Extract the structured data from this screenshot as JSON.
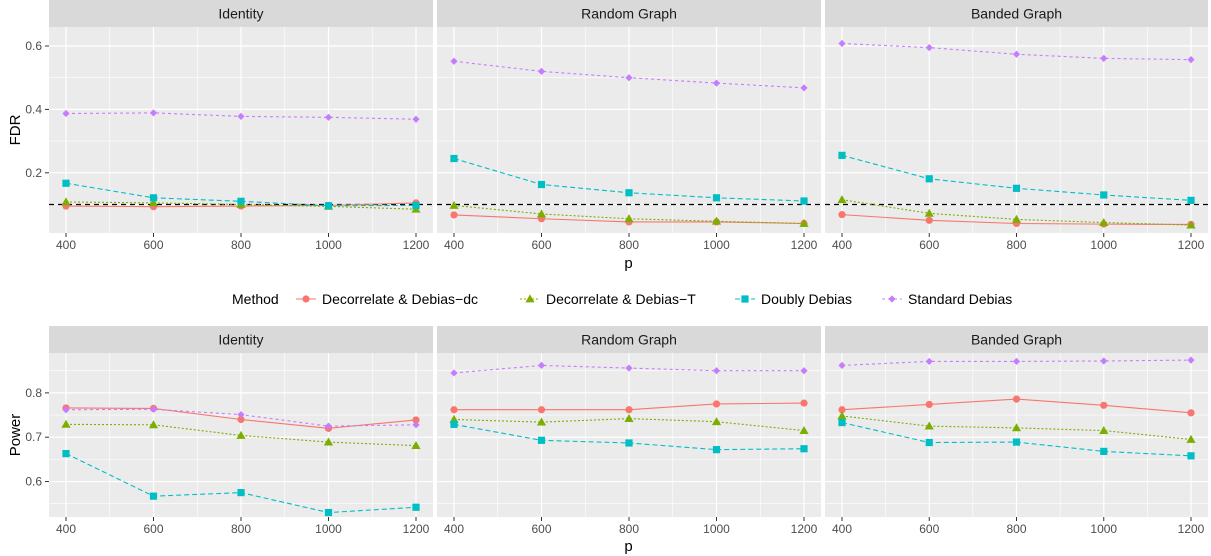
{
  "legend": {
    "title": "Method",
    "entries": [
      {
        "name": "Decorrelate & Debias−dc",
        "color": "#F8766D",
        "shape": "circle",
        "dash": ""
      },
      {
        "name": "Decorrelate & Debias−T",
        "color": "#7CAE00",
        "shape": "triangle",
        "dash": "2,2"
      },
      {
        "name": "Doubly Debias",
        "color": "#00BFC4",
        "shape": "square",
        "dash": "5,3"
      },
      {
        "name": "Standard Debias",
        "color": "#C77CFF",
        "shape": "diamond",
        "dash": "3,3"
      }
    ]
  },
  "chart_data": [
    {
      "type": "line",
      "ylabel": "FDR",
      "xlabel": "p",
      "x_ticks": [
        "400",
        "600",
        "800",
        "1000",
        "1200"
      ],
      "y_ticks": [
        "0.2",
        "0.4",
        "0.6"
      ],
      "reference_line": 0.1,
      "panels": [
        {
          "title": "Identity",
          "x": [
            400,
            600,
            800,
            1000,
            1200
          ],
          "series": [
            {
              "name": "Decorrelate & Debias−dc",
              "values": [
                0.095,
                0.093,
                0.095,
                0.097,
                0.105
              ]
            },
            {
              "name": "Decorrelate & Debias−T",
              "values": [
                0.108,
                0.105,
                0.1,
                0.094,
                0.085
              ]
            },
            {
              "name": "Doubly Debias",
              "values": [
                0.167,
                0.121,
                0.11,
                0.096,
                0.097
              ]
            },
            {
              "name": "Standard Debias",
              "values": [
                0.387,
                0.389,
                0.378,
                0.375,
                0.369
              ]
            }
          ]
        },
        {
          "title": "Random Graph",
          "x": [
            400,
            600,
            800,
            1000,
            1200
          ],
          "series": [
            {
              "name": "Decorrelate & Debias−dc",
              "values": [
                0.067,
                0.055,
                0.045,
                0.045,
                0.04
              ]
            },
            {
              "name": "Decorrelate & Debias−T",
              "values": [
                0.097,
                0.07,
                0.055,
                0.047,
                0.04
              ]
            },
            {
              "name": "Doubly Debias",
              "values": [
                0.245,
                0.163,
                0.137,
                0.121,
                0.111
              ]
            },
            {
              "name": "Standard Debias",
              "values": [
                0.552,
                0.52,
                0.5,
                0.483,
                0.468
              ]
            }
          ]
        },
        {
          "title": "Banded Graph",
          "x": [
            400,
            600,
            800,
            1000,
            1200
          ],
          "series": [
            {
              "name": "Decorrelate & Debias−dc",
              "values": [
                0.068,
                0.05,
                0.04,
                0.038,
                0.037
              ]
            },
            {
              "name": "Decorrelate & Debias−T",
              "values": [
                0.115,
                0.072,
                0.053,
                0.043,
                0.035
              ]
            },
            {
              "name": "Doubly Debias",
              "values": [
                0.255,
                0.181,
                0.151,
                0.13,
                0.113
              ]
            },
            {
              "name": "Standard Debias",
              "values": [
                0.608,
                0.595,
                0.574,
                0.561,
                0.557
              ]
            }
          ]
        }
      ],
      "ylim": [
        0.01,
        0.66
      ]
    },
    {
      "type": "line",
      "ylabel": "Power",
      "xlabel": "p",
      "x_ticks": [
        "400",
        "600",
        "800",
        "1000",
        "1200"
      ],
      "y_ticks": [
        "0.6",
        "0.7",
        "0.8"
      ],
      "panels": [
        {
          "title": "Identity",
          "x": [
            400,
            600,
            800,
            1000,
            1200
          ],
          "series": [
            {
              "name": "Decorrelate & Debias−dc",
              "values": [
                0.766,
                0.765,
                0.74,
                0.72,
                0.739
              ]
            },
            {
              "name": "Decorrelate & Debias−T",
              "values": [
                0.729,
                0.728,
                0.704,
                0.689,
                0.681
              ]
            },
            {
              "name": "Doubly Debias",
              "values": [
                0.663,
                0.567,
                0.575,
                0.53,
                0.542
              ]
            },
            {
              "name": "Standard Debias",
              "values": [
                0.762,
                0.763,
                0.751,
                0.725,
                0.728
              ]
            }
          ]
        },
        {
          "title": "Random Graph",
          "x": [
            400,
            600,
            800,
            1000,
            1200
          ],
          "series": [
            {
              "name": "Decorrelate & Debias−dc",
              "values": [
                0.762,
                0.762,
                0.762,
                0.775,
                0.777
              ]
            },
            {
              "name": "Decorrelate & Debias−T",
              "values": [
                0.74,
                0.734,
                0.742,
                0.735,
                0.715
              ]
            },
            {
              "name": "Doubly Debias",
              "values": [
                0.729,
                0.693,
                0.687,
                0.672,
                0.674
              ]
            },
            {
              "name": "Standard Debias",
              "values": [
                0.845,
                0.862,
                0.856,
                0.85,
                0.85
              ]
            }
          ]
        },
        {
          "title": "Banded Graph",
          "x": [
            400,
            600,
            800,
            1000,
            1200
          ],
          "series": [
            {
              "name": "Decorrelate & Debias−dc",
              "values": [
                0.762,
                0.774,
                0.786,
                0.772,
                0.755
              ]
            },
            {
              "name": "Decorrelate & Debias−T",
              "values": [
                0.748,
                0.725,
                0.721,
                0.715,
                0.695
              ]
            },
            {
              "name": "Doubly Debias",
              "values": [
                0.733,
                0.688,
                0.689,
                0.668,
                0.658
              ]
            },
            {
              "name": "Standard Debias",
              "values": [
                0.862,
                0.871,
                0.871,
                0.872,
                0.874
              ]
            }
          ]
        }
      ],
      "ylim": [
        0.52,
        0.89
      ]
    }
  ]
}
